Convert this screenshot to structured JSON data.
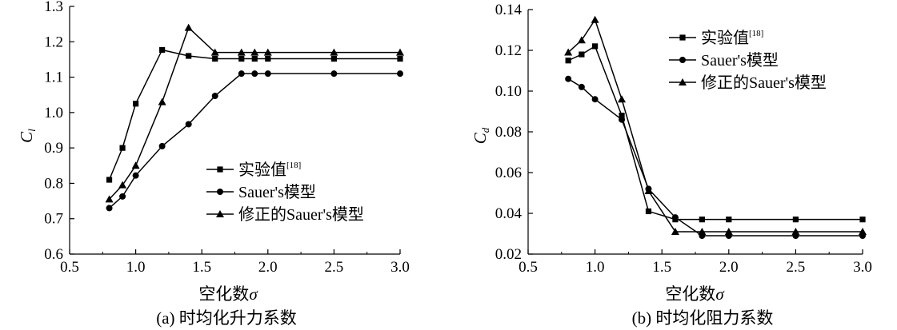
{
  "chart_data": [
    {
      "type": "line",
      "panel_caption": "(a) 时均化升力系数",
      "xlabel": "空化数",
      "xlabel_symbol": "σ",
      "ylabel": "C",
      "ylabel_sub": "l",
      "xlim": [
        0.5,
        3.0
      ],
      "ylim": [
        0.6,
        1.3
      ],
      "xticks": [
        "0.5",
        "1.0",
        "1.5",
        "2.0",
        "2.5",
        "3.0"
      ],
      "yticks": [
        "0.6",
        "0.7",
        "0.8",
        "0.9",
        "1.0",
        "1.1",
        "1.2",
        "1.3"
      ],
      "grid": false,
      "legend_position": "lower-right",
      "series": [
        {
          "name": "实验值",
          "name_sup": "[18]",
          "marker": "square",
          "x": [
            0.8,
            0.9,
            1.0,
            1.2,
            1.4,
            1.6,
            1.8,
            1.9,
            2.0,
            2.5,
            3.0
          ],
          "y": [
            0.81,
            0.9,
            1.025,
            1.177,
            1.16,
            1.152,
            1.152,
            1.152,
            1.152,
            1.152,
            1.152
          ]
        },
        {
          "name": "Sauer's模型",
          "marker": "circle",
          "x": [
            0.8,
            0.9,
            1.0,
            1.2,
            1.4,
            1.6,
            1.8,
            1.9,
            2.0,
            2.5,
            3.0
          ],
          "y": [
            0.73,
            0.763,
            0.822,
            0.905,
            0.967,
            1.047,
            1.11,
            1.11,
            1.11,
            1.11,
            1.11
          ]
        },
        {
          "name": "修正的Sauer's模型",
          "marker": "triangle",
          "x": [
            0.8,
            0.9,
            1.0,
            1.2,
            1.4,
            1.6,
            1.8,
            1.9,
            2.0,
            2.5,
            3.0
          ],
          "y": [
            0.755,
            0.795,
            0.85,
            1.03,
            1.24,
            1.17,
            1.17,
            1.17,
            1.17,
            1.17,
            1.17
          ]
        }
      ]
    },
    {
      "type": "line",
      "panel_caption": "(b) 时均化阻力系数",
      "xlabel": "空化数",
      "xlabel_symbol": "σ",
      "ylabel": "C",
      "ylabel_sub": "d",
      "xlim": [
        0.5,
        3.0
      ],
      "ylim": [
        0.02,
        0.14
      ],
      "xticks": [
        "0.5",
        "1.0",
        "1.5",
        "2.0",
        "2.5",
        "3.0"
      ],
      "yticks": [
        "0.02",
        "0.04",
        "0.06",
        "0.08",
        "0.10",
        "0.12",
        "0.14"
      ],
      "grid": false,
      "legend_position": "upper-right",
      "series": [
        {
          "name": "实验值",
          "name_sup": "[18]",
          "marker": "square",
          "x": [
            0.8,
            0.9,
            1.0,
            1.2,
            1.4,
            1.6,
            1.8,
            2.0,
            2.5,
            3.0
          ],
          "y": [
            0.115,
            0.118,
            0.122,
            0.088,
            0.041,
            0.037,
            0.037,
            0.037,
            0.037,
            0.037
          ]
        },
        {
          "name": "Sauer's模型",
          "marker": "circle",
          "x": [
            0.8,
            0.9,
            1.0,
            1.2,
            1.4,
            1.6,
            1.8,
            2.0,
            2.5,
            3.0
          ],
          "y": [
            0.106,
            0.102,
            0.096,
            0.086,
            0.052,
            0.038,
            0.029,
            0.029,
            0.029,
            0.029
          ]
        },
        {
          "name": "修正的Sauer's模型",
          "marker": "triangle",
          "x": [
            0.8,
            0.9,
            1.0,
            1.2,
            1.4,
            1.6,
            1.8,
            2.0,
            2.5,
            3.0
          ],
          "y": [
            0.119,
            0.125,
            0.135,
            0.096,
            0.051,
            0.031,
            0.031,
            0.031,
            0.031,
            0.031
          ]
        }
      ]
    }
  ]
}
